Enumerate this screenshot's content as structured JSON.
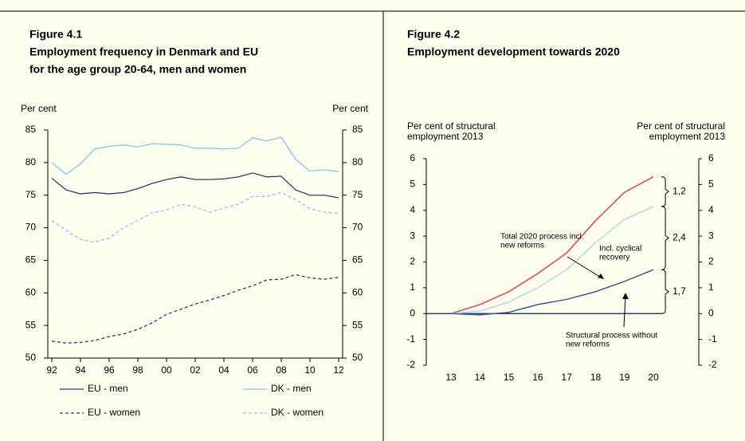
{
  "chart_data": [
    {
      "type": "line",
      "label": "Figure 4.1",
      "title": [
        "Employment frequency in Denmark and EU",
        "for the age group 20-64, men and women"
      ],
      "y_label": "Per cent",
      "y2_label": "Per cent",
      "x": [
        1992,
        1993,
        1994,
        1995,
        1996,
        1997,
        1998,
        1999,
        2000,
        2001,
        2002,
        2003,
        2004,
        2005,
        2006,
        2007,
        2008,
        2009,
        2010,
        2011,
        2012
      ],
      "xlim": [
        1992,
        2012
      ],
      "xticks": [
        {
          "value": 1992,
          "label": "92"
        },
        {
          "value": 1994,
          "label": "94"
        },
        {
          "value": 1996,
          "label": "96"
        },
        {
          "value": 1998,
          "label": "98"
        },
        {
          "value": 2000,
          "label": "00"
        },
        {
          "value": 2002,
          "label": "02"
        },
        {
          "value": 2004,
          "label": "04"
        },
        {
          "value": 2006,
          "label": "06"
        },
        {
          "value": 2008,
          "label": "08"
        },
        {
          "value": 2010,
          "label": "10"
        },
        {
          "value": 2012,
          "label": "12"
        }
      ],
      "ylim": [
        50,
        85
      ],
      "yticks": [
        50,
        55,
        60,
        65,
        70,
        75,
        80,
        85
      ],
      "series": [
        {
          "name": "EU - men",
          "color": "#2b3f6b",
          "dashed": false,
          "values": [
            77.6,
            75.8,
            75.2,
            75.4,
            75.2,
            75.4,
            76.0,
            76.8,
            77.4,
            77.8,
            77.4,
            77.4,
            77.5,
            77.8,
            78.4,
            77.8,
            77.9,
            75.8,
            75.0,
            75.0,
            74.6
          ]
        },
        {
          "name": "DK - men",
          "color": "#7ecbe6",
          "dashed": false,
          "values": [
            80.0,
            78.2,
            79.8,
            82.1,
            82.5,
            82.7,
            82.4,
            82.9,
            82.8,
            82.7,
            82.2,
            82.2,
            82.1,
            82.2,
            83.8,
            83.3,
            83.9,
            80.5,
            78.7,
            78.9,
            78.6
          ]
        },
        {
          "name": "EU - women",
          "color": "#2b3f6b",
          "dashed": true,
          "values": [
            52.6,
            52.3,
            52.4,
            52.7,
            53.3,
            53.7,
            54.4,
            55.4,
            56.7,
            57.5,
            58.3,
            58.9,
            59.6,
            60.4,
            61.1,
            62.0,
            62.1,
            62.8,
            62.3,
            62.1,
            62.4
          ]
        },
        {
          "name": "DK - women",
          "color": "#7ecbe6",
          "dashed": true,
          "values": [
            71.1,
            69.6,
            68.2,
            67.8,
            68.4,
            70.0,
            71.1,
            72.3,
            72.7,
            73.6,
            73.2,
            72.4,
            73.0,
            73.6,
            74.8,
            74.8,
            75.4,
            74.3,
            72.9,
            72.4,
            72.2
          ]
        }
      ]
    },
    {
      "type": "line",
      "label": "Figure 4.2",
      "title": [
        "Employment development towards 2020"
      ],
      "y_label": [
        "Per cent of structural",
        "employment 2013"
      ],
      "y2_label": [
        "Per cent of structural",
        "employment 2013"
      ],
      "categories": [
        "13",
        "14",
        "15",
        "16",
        "17",
        "18",
        "19",
        "20"
      ],
      "ylim": [
        -2,
        6
      ],
      "yticks": [
        -2,
        -1,
        0,
        1,
        2,
        3,
        4,
        5,
        6
      ],
      "series": [
        {
          "name": [
            "Total 2020 process incl.",
            "new reforms"
          ],
          "color": "#e0405a",
          "values": [
            0,
            0.35,
            0.85,
            1.55,
            2.35,
            3.6,
            4.7,
            5.3
          ]
        },
        {
          "name": [
            "Incl. cyclical",
            "recovery"
          ],
          "color": "#a8dce8",
          "values": [
            0,
            0.1,
            0.45,
            1.0,
            1.7,
            2.75,
            3.65,
            4.15
          ]
        },
        {
          "name": [
            "Structural process without",
            "new reforms"
          ],
          "color": "#3a5a9a",
          "values": [
            0,
            -0.05,
            0.05,
            0.35,
            0.55,
            0.85,
            1.25,
            1.7
          ]
        }
      ],
      "brace_labels": [
        "1,2",
        "2,4",
        "1,7"
      ]
    }
  ]
}
